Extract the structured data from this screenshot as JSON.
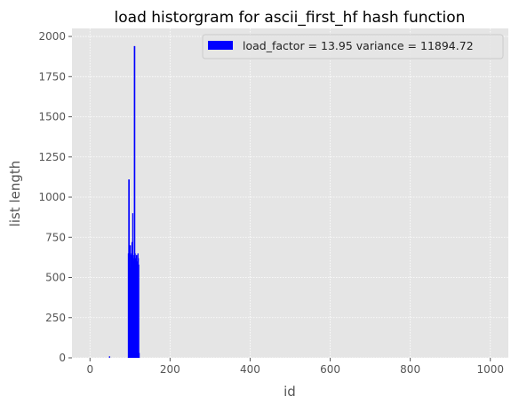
{
  "chart_data": {
    "type": "bar",
    "title": "load historgram for ascii_first_hf hash function",
    "xlabel": "id",
    "ylabel": "list length",
    "xlim": [
      -45,
      1045
    ],
    "ylim": [
      0,
      2050
    ],
    "xticks": [
      0,
      200,
      400,
      600,
      800,
      1000
    ],
    "yticks": [
      0,
      250,
      500,
      750,
      1000,
      1250,
      1500,
      1750,
      2000
    ],
    "grid": true,
    "legend": {
      "placement": "top-right",
      "label": "load_factor = 13.95 variance = 11894.72",
      "color": "#0000ff"
    },
    "bar_color": "#0000ff",
    "bar_width": 1,
    "series": [
      {
        "x": [
          48,
          95,
          96,
          97,
          98,
          99,
          100,
          101,
          102,
          103,
          104,
          105,
          106,
          107,
          108,
          109,
          110,
          111,
          112,
          113,
          114,
          115,
          116,
          117,
          118,
          119,
          120,
          121,
          122
        ],
        "values": [
          10,
          650,
          1110,
          1110,
          700,
          560,
          700,
          640,
          620,
          650,
          720,
          580,
          900,
          640,
          600,
          620,
          1940,
          1940,
          650,
          600,
          620,
          640,
          580,
          600,
          640,
          650,
          620,
          580,
          30
        ]
      }
    ]
  }
}
